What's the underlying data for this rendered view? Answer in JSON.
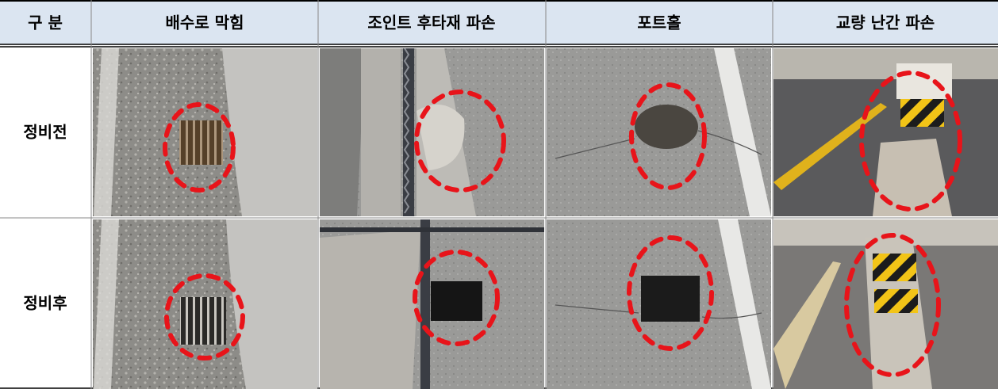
{
  "table": {
    "header": [
      "구 분",
      "배수로 막힘",
      "조인트 후타재 파손",
      "포트홀",
      "교량 난간 파손"
    ],
    "rows": [
      [
        "정비전"
      ],
      [
        "정비후"
      ]
    ]
  }
}
